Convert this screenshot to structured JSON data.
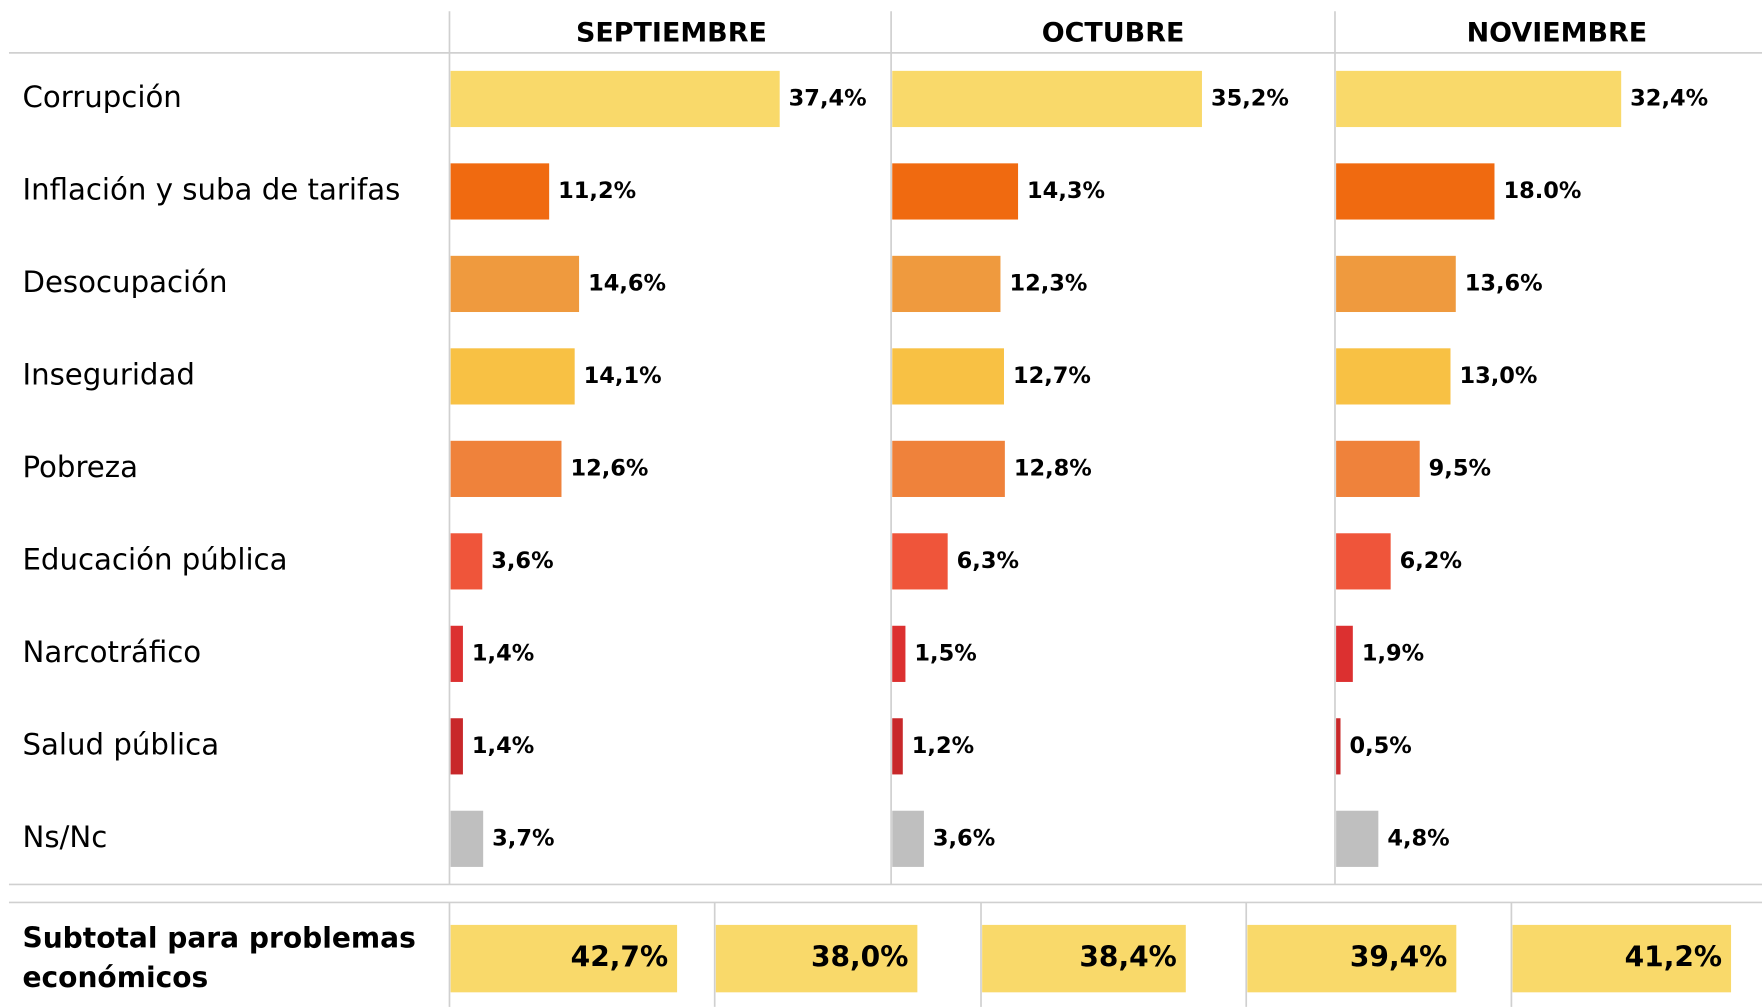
{
  "chart_data": {
    "type": "bar",
    "categories": [
      "Corrupción",
      "Inflación y suba de tarifas",
      "Desocupación",
      "Inseguridad",
      "Pobreza",
      "Educación pública",
      "Narcotráfico",
      "Salud pública",
      "Ns/Nc"
    ],
    "colors": [
      "#f9d96a",
      "#f06a10",
      "#ef9a3e",
      "#f8c144",
      "#ef823b",
      "#ef553a",
      "#dc3030",
      "#c8282a",
      "#bfbfbf"
    ],
    "series": [
      {
        "name": "SEPTIEMBRE",
        "values": [
          37.4,
          11.2,
          14.6,
          14.1,
          12.6,
          3.6,
          1.4,
          1.4,
          3.7
        ],
        "value_labels": [
          "37,4%",
          "11,2%",
          "14,6%",
          "14,1%",
          "12,6%",
          "3,6%",
          "1,4%",
          "1,4%",
          "3,7%"
        ]
      },
      {
        "name": "OCTUBRE",
        "values": [
          35.2,
          14.3,
          12.3,
          12.7,
          12.8,
          6.3,
          1.5,
          1.2,
          3.6
        ],
        "value_labels": [
          "35,2%",
          "14,3%",
          "12,3%",
          "12,7%",
          "12,8%",
          "6,3%",
          "1,5%",
          "1,2%",
          "3,6%"
        ]
      },
      {
        "name": "NOVIEMBRE",
        "values": [
          32.4,
          18.0,
          13.6,
          13.0,
          9.5,
          6.2,
          1.9,
          0.5,
          4.8
        ],
        "value_labels": [
          "32,4%",
          "18.0%",
          "13,6%",
          "13,0%",
          "9,5%",
          "6,2%",
          "1,9%",
          "0,5%",
          "4,8%"
        ]
      }
    ],
    "subtotal": {
      "label": [
        "Subtotal para problemas",
        "económicos"
      ],
      "color": "#f9d96a",
      "values": [
        42.7,
        38.0,
        38.4,
        39.4,
        41.2
      ],
      "value_labels": [
        "42,7%",
        "38,0%",
        "38,4%",
        "39,4%",
        "41,2%"
      ]
    }
  }
}
